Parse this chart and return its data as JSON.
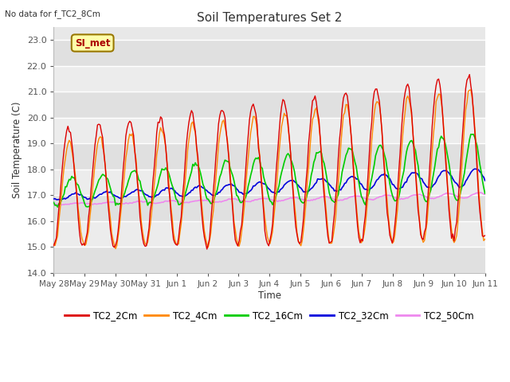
{
  "title": "Soil Temperatures Set 2",
  "ylabel": "Soil Temperature (C)",
  "xlabel": "Time",
  "top_left_note": "No data for f_TC2_8Cm",
  "legend_label": "SI_met",
  "ylim": [
    14.0,
    23.5
  ],
  "yticks": [
    14.0,
    15.0,
    16.0,
    17.0,
    18.0,
    19.0,
    20.0,
    21.0,
    22.0,
    23.0
  ],
  "fig_bg_color": "#ffffff",
  "ax_bg_color": "#e8e8e8",
  "band_colors": [
    "#e0e0e0",
    "#ececec"
  ],
  "series": {
    "TC2_2Cm": {
      "color": "#dd0000",
      "lw": 1.0
    },
    "TC2_4Cm": {
      "color": "#ff8800",
      "lw": 1.0
    },
    "TC2_16Cm": {
      "color": "#00cc00",
      "lw": 1.2
    },
    "TC2_32Cm": {
      "color": "#0000dd",
      "lw": 1.2
    },
    "TC2_50Cm": {
      "color": "#ee88ee",
      "lw": 1.2
    }
  },
  "xtick_labels": [
    "May 28",
    "May 29",
    "May 30",
    "May 31",
    "Jun 1",
    "Jun 2",
    "Jun 3",
    "Jun 4",
    "Jun 5",
    "Jun 6",
    "Jun 7",
    "Jun 8",
    "Jun 9",
    "Jun 10",
    "Jun 11"
  ],
  "num_points": 336
}
